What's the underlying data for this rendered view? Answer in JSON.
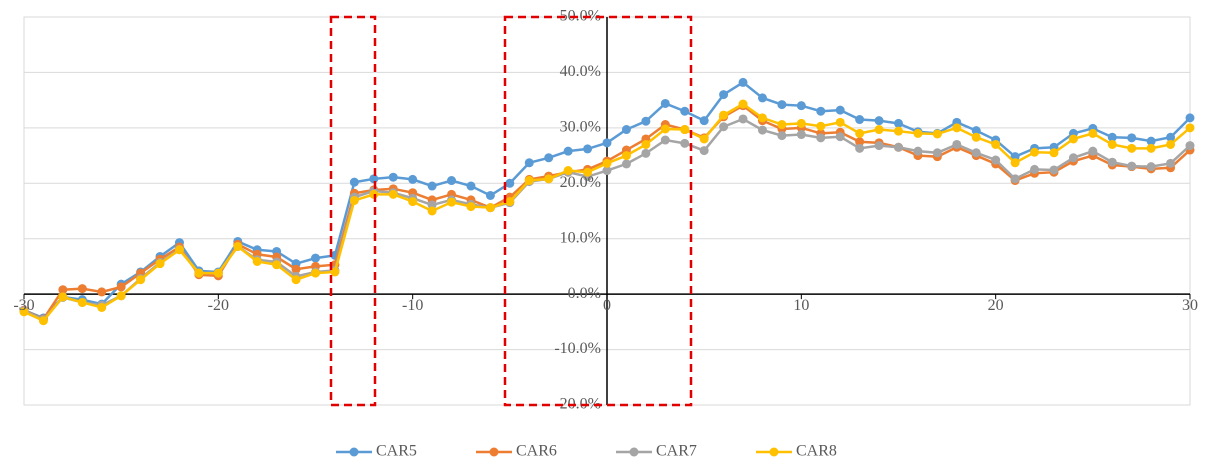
{
  "chart_data": {
    "type": "line",
    "x": [
      -30,
      -29,
      -28,
      -27,
      -26,
      -25,
      -24,
      -23,
      -22,
      -21,
      -20,
      -19,
      -18,
      -17,
      -16,
      -15,
      -14,
      -13,
      -12,
      -11,
      -10,
      -9,
      -8,
      -7,
      -6,
      -5,
      -4,
      -3,
      -2,
      -1,
      0,
      1,
      2,
      3,
      4,
      5,
      6,
      7,
      8,
      9,
      10,
      11,
      12,
      13,
      14,
      15,
      16,
      17,
      18,
      19,
      20,
      21,
      22,
      23,
      24,
      25,
      26,
      27,
      28,
      29,
      30
    ],
    "series": [
      {
        "name": "CAR5",
        "color": "#5b9bd5",
        "values": [
          -2.9,
          -4.3,
          -0.5,
          -1.0,
          -1.8,
          1.8,
          4.0,
          6.8,
          9.3,
          4.2,
          4.0,
          9.5,
          8.0,
          7.7,
          5.5,
          6.5,
          7.0,
          20.2,
          20.8,
          21.1,
          20.7,
          19.5,
          20.5,
          19.5,
          17.8,
          20.0,
          23.7,
          24.6,
          25.8,
          26.2,
          27.3,
          29.7,
          31.2,
          34.4,
          33.0,
          31.3,
          36.0,
          38.2,
          35.4,
          34.2,
          34.0,
          33.0,
          33.2,
          31.5,
          31.3,
          30.8,
          29.3,
          29.0,
          31.0,
          29.5,
          27.8,
          24.8,
          26.3,
          26.5,
          29.0,
          29.9,
          28.3,
          28.2,
          27.6,
          28.3,
          31.8
        ]
      },
      {
        "name": "CAR6",
        "color": "#ed7d31",
        "values": [
          -2.9,
          -4.5,
          0.8,
          1.0,
          0.4,
          1.3,
          3.8,
          6.3,
          8.5,
          3.5,
          3.3,
          9.0,
          7.2,
          6.7,
          4.5,
          5.0,
          5.3,
          18.2,
          18.8,
          19.0,
          18.3,
          17.0,
          18.0,
          17.0,
          15.6,
          17.5,
          20.7,
          21.3,
          22.0,
          22.5,
          24.0,
          26.0,
          28.0,
          30.6,
          29.7,
          28.2,
          32.0,
          34.0,
          31.3,
          29.8,
          30.0,
          29.0,
          29.2,
          27.5,
          27.3,
          26.5,
          25.0,
          24.8,
          26.5,
          25.0,
          23.5,
          20.5,
          21.8,
          22.0,
          24.0,
          25.0,
          23.3,
          23.0,
          22.6,
          22.8,
          26.0
        ]
      },
      {
        "name": "CAR7",
        "color": "#a5a5a5",
        "values": [
          -3.0,
          -4.6,
          -0.6,
          -1.5,
          -2.0,
          -0.3,
          2.8,
          5.7,
          8.1,
          3.8,
          3.8,
          8.6,
          6.2,
          5.8,
          3.2,
          4.0,
          4.3,
          17.5,
          18.6,
          18.3,
          17.3,
          16.1,
          17.0,
          16.2,
          15.6,
          16.5,
          20.3,
          20.8,
          22.0,
          21.2,
          22.3,
          23.5,
          25.4,
          27.8,
          27.2,
          25.9,
          30.2,
          31.6,
          29.6,
          28.6,
          28.8,
          28.2,
          28.4,
          26.3,
          26.8,
          26.5,
          25.8,
          25.5,
          27.0,
          25.5,
          24.2,
          20.8,
          22.5,
          22.4,
          24.6,
          25.8,
          23.8,
          23.1,
          23.0,
          23.6,
          26.8
        ]
      },
      {
        "name": "CAR8",
        "color": "#ffc000",
        "values": [
          -3.2,
          -4.8,
          -0.5,
          -1.5,
          -2.4,
          -0.3,
          2.6,
          5.5,
          8.0,
          3.8,
          3.8,
          8.6,
          5.9,
          5.3,
          2.6,
          3.8,
          4.0,
          16.9,
          18.0,
          18.0,
          16.7,
          15.0,
          16.6,
          15.8,
          15.6,
          16.7,
          20.5,
          20.8,
          22.3,
          22.0,
          23.6,
          25.0,
          27.0,
          29.8,
          29.7,
          28.0,
          32.3,
          34.3,
          31.8,
          30.6,
          30.8,
          30.3,
          31.0,
          29.0,
          29.7,
          29.4,
          29.0,
          28.9,
          30.0,
          28.3,
          27.0,
          23.7,
          25.6,
          25.5,
          28.0,
          29.0,
          27.0,
          26.3,
          26.3,
          27.0,
          30.0
        ]
      }
    ],
    "xlim": [
      -30,
      30
    ],
    "xticks": [
      -30,
      -20,
      -10,
      0,
      10,
      20,
      30
    ],
    "ylim": [
      -20,
      50
    ],
    "yticks": [
      {
        "value": -20,
        "label": "-20.0%"
      },
      {
        "value": -10,
        "label": "-10.0%"
      },
      {
        "value": 0,
        "label": "0.0%"
      },
      {
        "value": 10,
        "label": "10.0%"
      },
      {
        "value": 20,
        "label": "20.0%"
      },
      {
        "value": 30,
        "label": "30.0%"
      },
      {
        "value": 40,
        "label": "40.0%"
      },
      {
        "value": 50,
        "label": "50.0%"
      }
    ],
    "grid": true,
    "legend": "bottom"
  }
}
